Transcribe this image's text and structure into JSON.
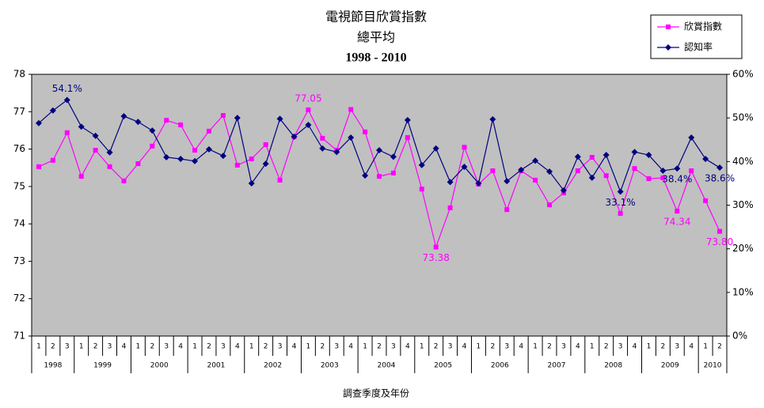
{
  "chart_data": {
    "type": "line",
    "title": "電視節目欣賞指數",
    "subtitle": "總平均",
    "period": "1998 - 2010",
    "xlabel": "調查季度及年份",
    "groups": [
      {
        "label": "1998",
        "quarters": [
          "1",
          "2",
          "3"
        ]
      },
      {
        "label": "1999",
        "quarters": [
          "1",
          "2",
          "3",
          "4"
        ]
      },
      {
        "label": "2000",
        "quarters": [
          "1",
          "2",
          "3",
          "4"
        ]
      },
      {
        "label": "2001",
        "quarters": [
          "1",
          "2",
          "3",
          "4"
        ]
      },
      {
        "label": "2002",
        "quarters": [
          "1",
          "2",
          "3",
          "4"
        ]
      },
      {
        "label": "2003",
        "quarters": [
          "1",
          "2",
          "3",
          "4"
        ]
      },
      {
        "label": "2004",
        "quarters": [
          "1",
          "2",
          "3",
          "4"
        ]
      },
      {
        "label": "2005",
        "quarters": [
          "1",
          "2",
          "3",
          "4"
        ]
      },
      {
        "label": "2006",
        "quarters": [
          "1",
          "2",
          "3",
          "4"
        ]
      },
      {
        "label": "2007",
        "quarters": [
          "1",
          "2",
          "3",
          "4"
        ]
      },
      {
        "label": "2008",
        "quarters": [
          "1",
          "2",
          "3",
          "4"
        ]
      },
      {
        "label": "2009",
        "quarters": [
          "1",
          "2",
          "3",
          "4"
        ]
      },
      {
        "label": "2010",
        "quarters": [
          "1",
          "2"
        ]
      }
    ],
    "ylim": [
      71,
      78
    ],
    "yticks": [
      71,
      72,
      73,
      74,
      75,
      76,
      77,
      78
    ],
    "y2lim": [
      0,
      60
    ],
    "y2ticks": [
      {
        "value": 0,
        "label": "0%"
      },
      {
        "value": 10,
        "label": "10%"
      },
      {
        "value": 20,
        "label": "20%"
      },
      {
        "value": 30,
        "label": "30%"
      },
      {
        "value": 40,
        "label": "40%"
      },
      {
        "value": 50,
        "label": "50%"
      },
      {
        "value": 60,
        "label": "60%"
      }
    ],
    "background": "#c0c0c0",
    "legend": "upper right",
    "series": [
      {
        "name": "欣賞指數",
        "color": "#ff00ff",
        "marker": "square",
        "axis": "y",
        "values": [
          75.53,
          75.7,
          76.44,
          75.27,
          75.97,
          75.53,
          75.15,
          75.61,
          76.08,
          76.77,
          76.65,
          75.97,
          76.48,
          76.9,
          75.57,
          75.74,
          76.12,
          75.17,
          76.33,
          77.05,
          76.29,
          75.97,
          77.06,
          76.46,
          75.27,
          75.36,
          76.31,
          74.93,
          73.38,
          74.43,
          76.05,
          75.06,
          75.42,
          74.38,
          75.42,
          75.17,
          74.51,
          74.83,
          75.42,
          75.78,
          75.29,
          74.28,
          75.48,
          75.21,
          75.23,
          74.34,
          75.42,
          74.62,
          73.8
        ],
        "value_labels": [
          null,
          null,
          null,
          null,
          null,
          null,
          null,
          null,
          null,
          null,
          null,
          null,
          null,
          null,
          null,
          null,
          null,
          null,
          null,
          "77.05",
          null,
          null,
          null,
          null,
          null,
          null,
          null,
          null,
          "73.38",
          null,
          null,
          null,
          null,
          null,
          null,
          null,
          null,
          null,
          null,
          null,
          null,
          null,
          null,
          null,
          null,
          "74.34",
          null,
          null,
          "73.80"
        ]
      },
      {
        "name": "認知率",
        "color": "#000080",
        "marker": "diamond",
        "axis": "y2",
        "values": [
          48.8,
          51.7,
          54.1,
          48.0,
          45.9,
          42.1,
          50.4,
          49.1,
          47.1,
          41.0,
          40.6,
          40.1,
          42.8,
          41.3,
          50.0,
          35.0,
          39.5,
          49.8,
          45.7,
          48.4,
          43.0,
          42.2,
          45.5,
          36.8,
          42.6,
          41.1,
          49.5,
          39.2,
          43.0,
          35.3,
          38.8,
          35.0,
          49.7,
          35.5,
          38.1,
          40.2,
          37.7,
          33.4,
          41.1,
          36.3,
          41.5,
          33.1,
          42.2,
          41.5,
          37.9,
          38.4,
          45.5,
          40.6,
          38.6
        ],
        "value_labels": [
          null,
          null,
          "54.1%",
          null,
          null,
          null,
          null,
          null,
          null,
          null,
          null,
          null,
          null,
          null,
          null,
          null,
          null,
          null,
          null,
          null,
          null,
          null,
          null,
          null,
          null,
          null,
          null,
          null,
          null,
          null,
          null,
          null,
          null,
          null,
          null,
          null,
          null,
          null,
          null,
          null,
          null,
          "33.1%",
          null,
          null,
          null,
          "38.4%",
          null,
          null,
          "38.6%"
        ]
      }
    ]
  }
}
